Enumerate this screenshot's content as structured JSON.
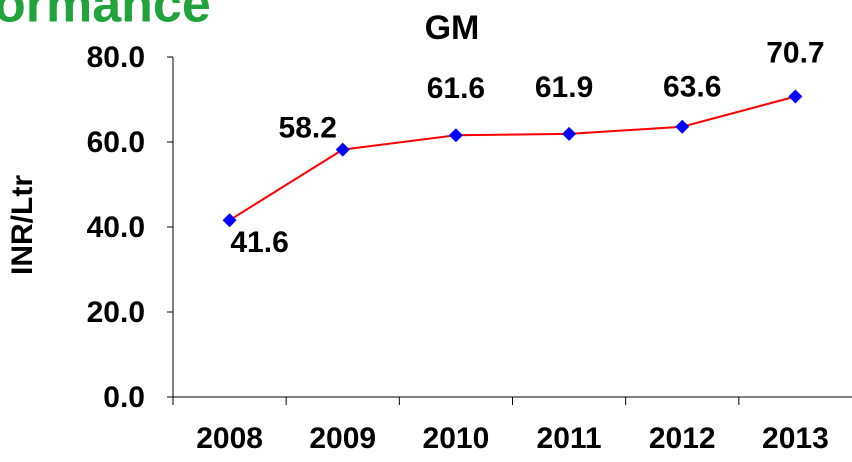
{
  "heading": "ormance",
  "chart_data": {
    "type": "line",
    "title": "GM",
    "y_label": "INR/Ltr",
    "categories": [
      "2008",
      "2009",
      "2010",
      "2011",
      "2012",
      "2013"
    ],
    "series": [
      {
        "name": "GM",
        "color": "#ff0000",
        "marker_color": "#0000ff",
        "values": [
          41.6,
          58.2,
          61.6,
          61.9,
          63.6,
          70.7
        ]
      }
    ],
    "ylim": [
      0,
      80
    ],
    "yticks": [
      {
        "value": 0,
        "label": "0.0"
      },
      {
        "value": 20,
        "label": "20.0"
      },
      {
        "value": 40,
        "label": "40.0"
      },
      {
        "value": 60,
        "label": "60.0"
      },
      {
        "value": 80,
        "label": "80.0"
      }
    ],
    "grid": false
  }
}
